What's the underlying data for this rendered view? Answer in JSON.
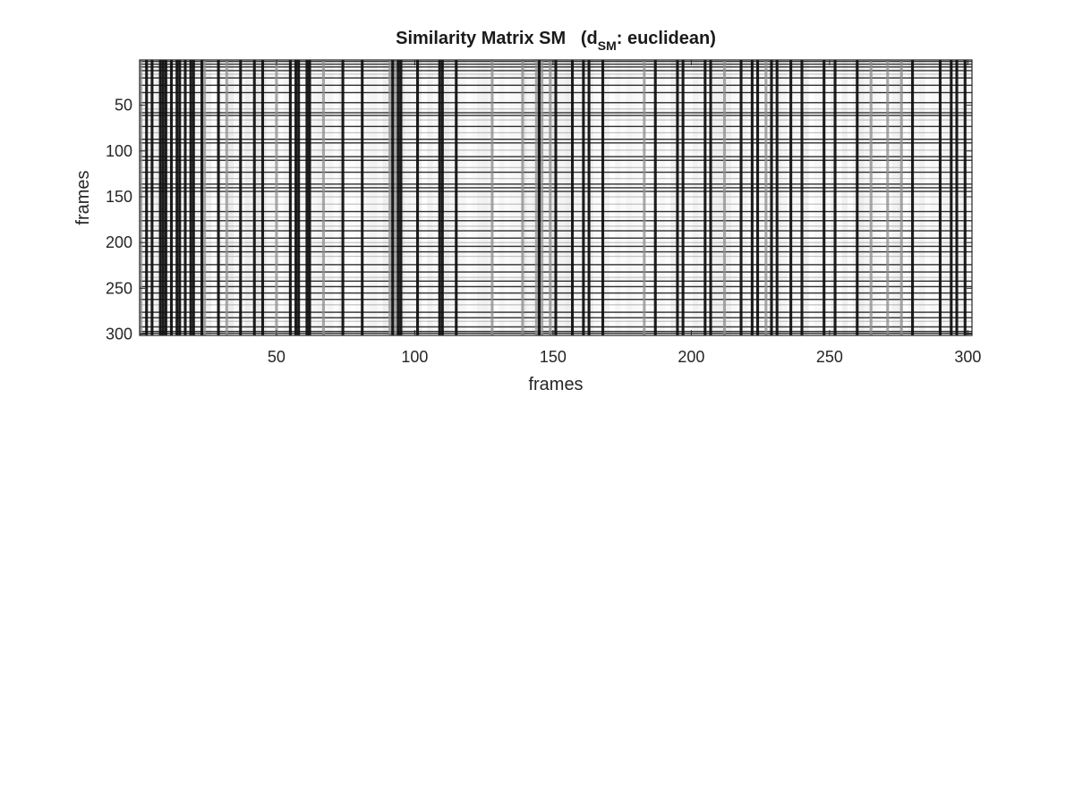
{
  "chart_data": {
    "type": "heatmap",
    "title": {
      "main": "Similarity Matrix SM",
      "paren_open": "(d",
      "subscript": "SM",
      "rest": ": euclidean)"
    },
    "xlabel": "frames",
    "ylabel": "frames",
    "xlim": [
      0.5,
      301.5
    ],
    "ylim": [
      0.5,
      301.5
    ],
    "y_reversed": true,
    "colormap": "gray",
    "xticks": [
      50,
      100,
      150,
      200,
      250,
      300
    ],
    "yticks": [
      50,
      100,
      150,
      200,
      250,
      300
    ],
    "xtick_labels": [
      "50",
      "100",
      "150",
      "200",
      "250",
      "300"
    ],
    "ytick_labels": [
      "50",
      "100",
      "150",
      "200",
      "250",
      "300"
    ],
    "n_frames": 301,
    "dark_columns": [
      3,
      5,
      8,
      9,
      10,
      12,
      14,
      15,
      17,
      19,
      20,
      23,
      29,
      37,
      42,
      45,
      55,
      57,
      58,
      61,
      62,
      74,
      81,
      92,
      94,
      95,
      101,
      109,
      110,
      115,
      145,
      151,
      157,
      161,
      163,
      168,
      187,
      195,
      197,
      205,
      207,
      218,
      222,
      224,
      229,
      231,
      236,
      240,
      248,
      252,
      260,
      280,
      290,
      294,
      296,
      299
    ],
    "gray_columns": [
      1,
      24,
      32,
      50,
      67,
      91,
      93,
      128,
      139,
      144,
      146,
      149,
      183,
      212,
      227,
      265,
      271,
      276
    ],
    "dark_rows": [
      2,
      5,
      8,
      12,
      20,
      28,
      36,
      47,
      58,
      61,
      73,
      87,
      91,
      106,
      110,
      123,
      136,
      140,
      144,
      166,
      176,
      187,
      195,
      204,
      210,
      224,
      232,
      242,
      248,
      255,
      262,
      276,
      282,
      292,
      297,
      299
    ],
    "gray_rows": [
      16,
      54,
      66,
      80,
      99,
      118,
      130,
      150,
      158,
      172,
      182,
      200,
      215,
      238,
      268,
      286
    ],
    "grid": false
  }
}
